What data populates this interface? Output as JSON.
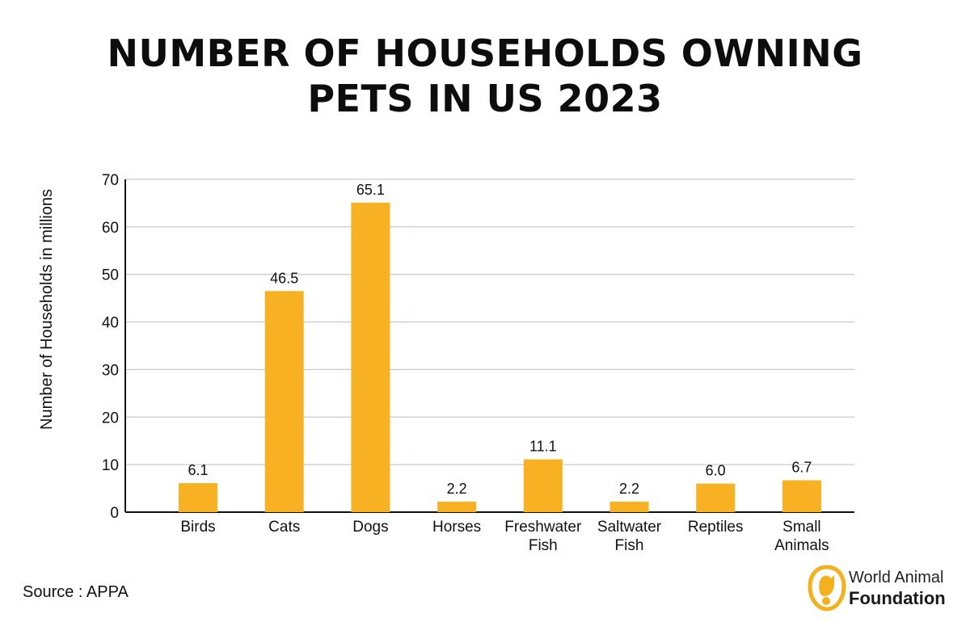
{
  "title_lines": [
    "NUMBER OF HOUSEHOLDS OWNING",
    "PETS IN US 2023"
  ],
  "source": "Source : APPA",
  "logo": {
    "line1": "World Animal",
    "line2": "Foundation",
    "icon": "dog-cat-logo-icon",
    "color": "#f5b01e"
  },
  "colors": {
    "bar": "#f8b123",
    "grid": "#bdbdbd",
    "axis": "#111111"
  },
  "chart_data": {
    "type": "bar",
    "title": "NUMBER OF HOUSEHOLDS OWNING PETS IN US 2023",
    "xlabel": "",
    "ylabel": "Number of Households in millions",
    "categories": [
      "Birds",
      "Cats",
      "Dogs",
      "Horses",
      "Freshwater Fish",
      "Saltwater Fish",
      "Reptiles",
      "Small Animals"
    ],
    "category_lines": [
      [
        "Birds"
      ],
      [
        "Cats"
      ],
      [
        "Dogs"
      ],
      [
        "Horses"
      ],
      [
        "Freshwater",
        "Fish"
      ],
      [
        "Saltwater",
        "Fish"
      ],
      [
        "Reptiles"
      ],
      [
        "Small",
        "Animals"
      ]
    ],
    "values": [
      6.1,
      46.5,
      65.1,
      2.2,
      11.1,
      2.2,
      6.0,
      6.7
    ],
    "value_labels": [
      "6.1",
      "46.5",
      "65.1",
      "2.2",
      "11.1",
      "2.2",
      "6.0",
      "6.7"
    ],
    "ylim": [
      0,
      70
    ],
    "yticks": [
      0,
      10,
      20,
      30,
      40,
      50,
      60,
      70
    ],
    "grid": true,
    "legend": "none"
  }
}
